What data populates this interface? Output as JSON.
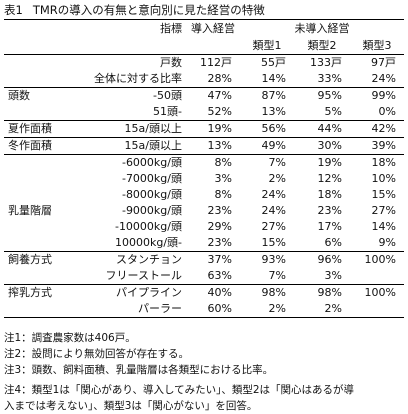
{
  "title": {
    "number": "表1",
    "text": "TMRの導入の有無と意向別に見た経営の特徴"
  },
  "header": {
    "indicator": "指標",
    "adopted": "導入経営",
    "not_adopted": "未導入経営",
    "type1": "類型1",
    "type2": "類型2",
    "type3": "類型3"
  },
  "rows": [
    {
      "cat": "",
      "label": "戸数",
      "v": [
        "112戸",
        "55戸",
        "133戸",
        "97戸"
      ],
      "bold": [
        false,
        false,
        false,
        false
      ]
    },
    {
      "cat": "",
      "label": "全体に対する比率",
      "v": [
        "28%",
        "14%",
        "33%",
        "24%"
      ],
      "bold": [
        false,
        false,
        false,
        false
      ]
    },
    {
      "cat": "頭数",
      "label": "-50頭",
      "v": [
        "47%",
        "87%",
        "95%",
        "99%"
      ],
      "bold": [
        false,
        true,
        true,
        true
      ]
    },
    {
      "cat": "",
      "label": "51頭-",
      "v": [
        "52%",
        "13%",
        "5%",
        "0%"
      ],
      "bold": [
        true,
        false,
        false,
        false
      ]
    },
    {
      "cat": "夏作面積",
      "label": "15a/頭以上",
      "v": [
        "19%",
        "56%",
        "44%",
        "42%"
      ],
      "bold": [
        false,
        true,
        true,
        false
      ]
    },
    {
      "cat": "冬作面積",
      "label": "15a/頭以上",
      "v": [
        "13%",
        "49%",
        "30%",
        "39%"
      ],
      "bold": [
        false,
        true,
        false,
        false
      ]
    },
    {
      "cat": "",
      "label": "-6000kg/頭",
      "v": [
        "8%",
        "7%",
        "19%",
        "18%"
      ],
      "bold": [
        false,
        false,
        true,
        false
      ]
    },
    {
      "cat": "",
      "label": "-7000kg/頭",
      "v": [
        "3%",
        "2%",
        "12%",
        "10%"
      ],
      "bold": [
        false,
        false,
        true,
        false
      ]
    },
    {
      "cat": "",
      "label": "-8000kg/頭",
      "v": [
        "8%",
        "24%",
        "18%",
        "15%"
      ],
      "bold": [
        false,
        true,
        true,
        false
      ]
    },
    {
      "cat": "乳量階層",
      "label": "-9000kg/頭",
      "v": [
        "23%",
        "24%",
        "23%",
        "27%"
      ],
      "bold": [
        true,
        true,
        true,
        false
      ]
    },
    {
      "cat": "",
      "label": "-10000kg/頭",
      "v": [
        "29%",
        "27%",
        "17%",
        "14%"
      ],
      "bold": [
        true,
        true,
        false,
        false
      ]
    },
    {
      "cat": "",
      "label": "10000kg/頭-",
      "v": [
        "23%",
        "15%",
        "6%",
        "9%"
      ],
      "bold": [
        true,
        false,
        false,
        false
      ]
    },
    {
      "cat": "飼養方式",
      "label": "スタンチョン",
      "v": [
        "37%",
        "93%",
        "96%",
        "100%"
      ],
      "bold": [
        false,
        false,
        false,
        false
      ]
    },
    {
      "cat": "",
      "label": "フリーストール",
      "v": [
        "63%",
        "7%",
        "3%",
        ""
      ],
      "bold": [
        true,
        false,
        false,
        false
      ]
    },
    {
      "cat": "搾乳方式",
      "label": "パイプライン",
      "v": [
        "40%",
        "98%",
        "98%",
        "100%"
      ],
      "bold": [
        false,
        false,
        false,
        false
      ]
    },
    {
      "cat": "",
      "label": "パーラー",
      "v": [
        "60%",
        "2%",
        "2%",
        ""
      ],
      "bold": [
        true,
        false,
        false,
        false
      ]
    }
  ],
  "notes": [
    "注1：調査農家数は406戸。",
    "注2：設問により無効回答が存在する。",
    "注3：頭数、飼料面積、乳量階層は各類型における比率。",
    "注4：類型1は「関心があり、導入してみたい」、類型2は「関心はあるが導",
    "入までは考えない」、類型3は「関心がない」を回答。"
  ]
}
